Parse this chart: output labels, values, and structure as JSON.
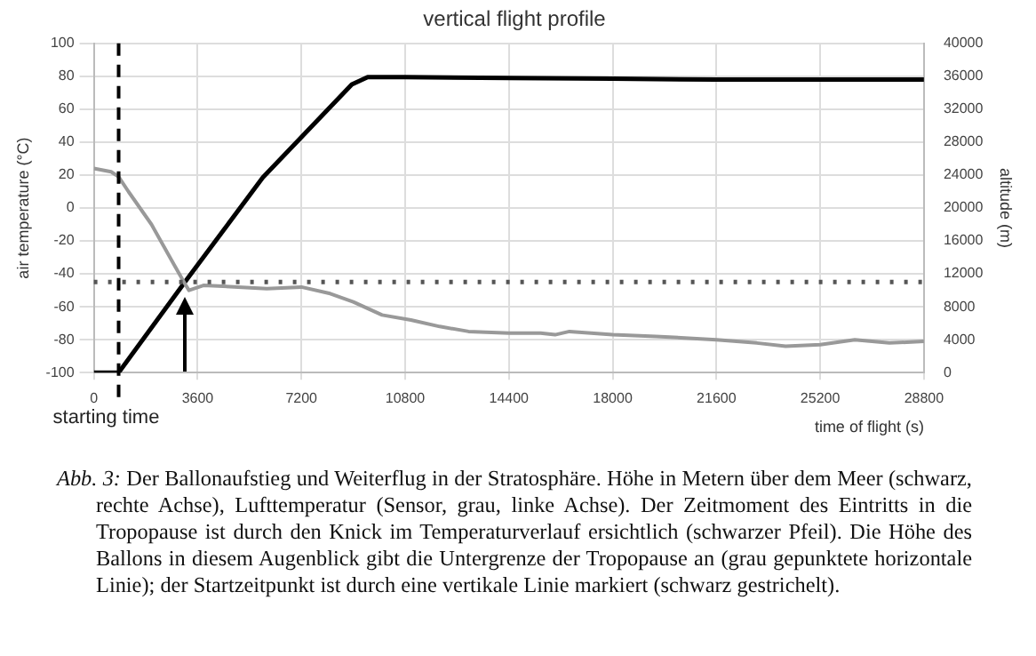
{
  "chart_data": {
    "type": "line",
    "title": "vertical flight profile",
    "xlabel": "time of flight (s)",
    "ylabel": "air temperature (°C)",
    "y2label": "altitude (m)",
    "xlim": [
      0,
      28800
    ],
    "xticks": [
      0,
      3600,
      7200,
      10800,
      14400,
      18000,
      21600,
      25200,
      28800
    ],
    "ylim": [
      -100,
      100
    ],
    "yticks": [
      -100,
      -80,
      -60,
      -40,
      -20,
      0,
      20,
      40,
      60,
      80,
      100
    ],
    "y2lim": [
      0,
      40000
    ],
    "y2ticks": [
      0,
      4000,
      8000,
      12000,
      16000,
      20000,
      24000,
      28000,
      32000,
      36000,
      40000
    ],
    "grid": true,
    "legend": false,
    "marker": "none",
    "series": [
      {
        "color": "#999999",
        "x": [
          0,
          600,
          860,
          1200,
          2000,
          2800,
          3160,
          3300,
          3800,
          5000,
          6000,
          7200,
          8200,
          9000,
          10000,
          11000,
          12000,
          13000,
          14400,
          15500,
          16000,
          16500,
          18000,
          19500,
          21600,
          23000,
          24000,
          25200,
          26400,
          27600,
          28800
        ],
        "values": [
          24,
          22,
          19,
          10,
          -10,
          -35,
          -46,
          -50,
          -47,
          -48,
          -49,
          -48,
          -52,
          -57,
          -65,
          -68,
          -72,
          -75,
          -76,
          -76,
          -77,
          -75,
          -77,
          -78,
          -80,
          -82,
          -84,
          -83,
          -80,
          -82,
          -81
        ]
      },
      {
        "color": "#000000",
        "axis": "y2",
        "x": [
          0,
          860,
          3160,
          5860,
          8950,
          9500,
          10800,
          14400,
          18000,
          21600,
          25200,
          28800
        ],
        "values": [
          0,
          0,
          11000,
          23700,
          35000,
          35900,
          35900,
          35800,
          35700,
          35600,
          35600,
          35600
        ]
      }
    ],
    "ref_lines": [
      {
        "axis": "x",
        "value": 860,
        "label": "starting time",
        "color": "#000000",
        "line_style": "dashed"
      },
      {
        "axis": "y2",
        "value": 11000,
        "label": null,
        "color": "#555555",
        "line_style": "dotted"
      }
    ],
    "annotations": [
      "Abb. 3: Der Ballonaufstieg und Weiterflug in der Stratosphäre. Höhe in Metern über dem Meer (schwarz, rechte Achse), Lufttemperatur (Sensor, grau, linke Achse). Der Zeitmoment des Eintritts in die Tropopause ist durch den Knick im Temperaturverlauf ersichtlich (schwarzer Pfeil). Die Höhe des Ballons in diesem Augenblick gibt die Untergrenze der Tropopause an (grau gepunktete horizontale Linie); der Startzeitpunkt ist durch eine vertikale Linie markiert (schwarz gestrichelt)."
    ]
  }
}
